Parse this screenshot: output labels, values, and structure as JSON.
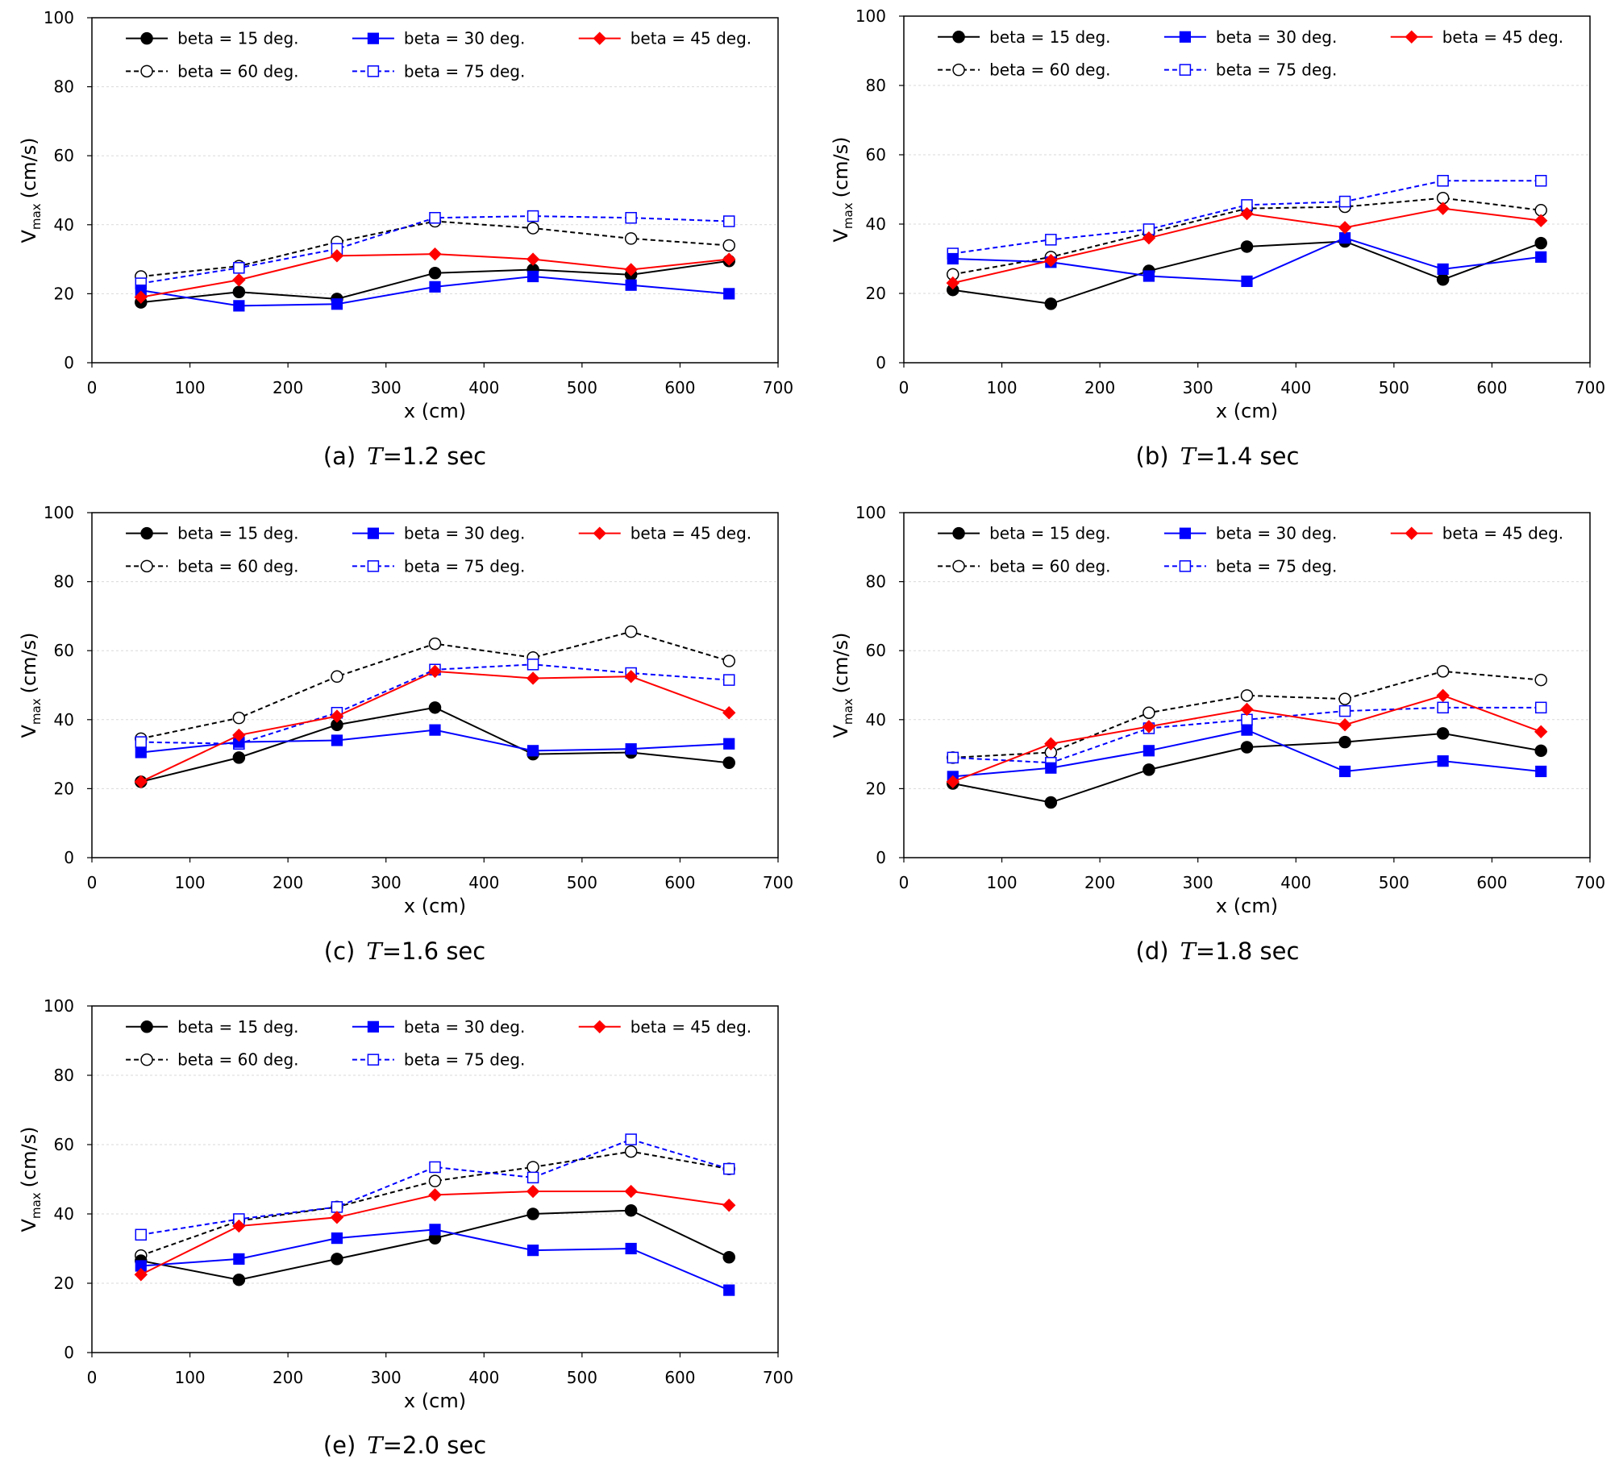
{
  "styles": {
    "black": "#000000",
    "blue": "#0000ff",
    "red": "#ff0000",
    "grid": "#d9d9d9"
  },
  "legend": [
    {
      "label": "beta = 15 deg.",
      "color": "#000000",
      "dash": false,
      "marker": "circle-filled"
    },
    {
      "label": "beta = 30 deg.",
      "color": "#0000ff",
      "dash": false,
      "marker": "square-filled"
    },
    {
      "label": "beta = 45 deg.",
      "color": "#ff0000",
      "dash": false,
      "marker": "diamond-filled"
    },
    {
      "label": "beta = 60 deg.",
      "color": "#000000",
      "dash": true,
      "marker": "circle-open"
    },
    {
      "label": "beta = 75 deg.",
      "color": "#0000ff",
      "dash": true,
      "marker": "square-open"
    }
  ],
  "chart_data": [
    {
      "type": "line",
      "id": "a",
      "caption_prefix": "(a)",
      "caption_var": "T",
      "caption_rest": "=1.2 sec",
      "xlabel": "x (cm)",
      "ylabel_main": "V",
      "ylabel_sub": "max",
      "ylabel_unit": "(cm/s)",
      "xlim": [
        0,
        700
      ],
      "ylim": [
        0,
        100
      ],
      "xticks": [
        0,
        100,
        200,
        300,
        400,
        500,
        600,
        700
      ],
      "yticks": [
        0,
        20,
        40,
        60,
        80,
        100
      ],
      "x": [
        50,
        150,
        250,
        350,
        450,
        550,
        650
      ],
      "series": [
        {
          "name": "beta = 15 deg.",
          "values": [
            17.5,
            20.5,
            18.5,
            26,
            27,
            25.5,
            29.5
          ]
        },
        {
          "name": "beta = 30 deg.",
          "values": [
            21,
            16.5,
            17,
            22,
            25,
            22.5,
            20
          ]
        },
        {
          "name": "beta = 45 deg.",
          "values": [
            19,
            24,
            31,
            31.5,
            30,
            27,
            30
          ]
        },
        {
          "name": "beta = 60 deg.",
          "values": [
            25,
            28,
            35,
            41,
            39,
            36,
            34
          ]
        },
        {
          "name": "beta = 75 deg.",
          "values": [
            23,
            27.5,
            33,
            42,
            42.5,
            42,
            41
          ]
        }
      ]
    },
    {
      "type": "line",
      "id": "b",
      "caption_prefix": "(b)",
      "caption_var": "T",
      "caption_rest": "=1.4 sec",
      "xlabel": "x (cm)",
      "ylabel_main": "V",
      "ylabel_sub": "max",
      "ylabel_unit": "(cm/s)",
      "xlim": [
        0,
        700
      ],
      "ylim": [
        0,
        100
      ],
      "xticks": [
        0,
        100,
        200,
        300,
        400,
        500,
        600,
        700
      ],
      "yticks": [
        0,
        20,
        40,
        60,
        80,
        100
      ],
      "x": [
        50,
        150,
        250,
        350,
        450,
        550,
        650
      ],
      "series": [
        {
          "name": "beta = 15 deg.",
          "values": [
            21,
            17,
            26.5,
            33.5,
            35,
            24,
            34.5
          ]
        },
        {
          "name": "beta = 30 deg.",
          "values": [
            30,
            29,
            25,
            23.5,
            36,
            27,
            30.5
          ]
        },
        {
          "name": "beta = 45 deg.",
          "values": [
            23,
            29.5,
            36,
            43,
            39,
            44.5,
            41
          ]
        },
        {
          "name": "beta = 60 deg.",
          "values": [
            25.5,
            30.5,
            37.5,
            44.5,
            45,
            47.5,
            44
          ]
        },
        {
          "name": "beta = 75 deg.",
          "values": [
            31.5,
            35.5,
            38.5,
            45.5,
            46.5,
            52.5,
            52.5
          ]
        }
      ]
    },
    {
      "type": "line",
      "id": "c",
      "caption_prefix": "(c)",
      "caption_var": "T",
      "caption_rest": "=1.6 sec",
      "xlabel": "x (cm)",
      "ylabel_main": "V",
      "ylabel_sub": "max",
      "ylabel_unit": "(cm/s)",
      "xlim": [
        0,
        700
      ],
      "ylim": [
        0,
        100
      ],
      "xticks": [
        0,
        100,
        200,
        300,
        400,
        500,
        600,
        700
      ],
      "yticks": [
        0,
        20,
        40,
        60,
        80,
        100
      ],
      "x": [
        50,
        150,
        250,
        350,
        450,
        550,
        650
      ],
      "series": [
        {
          "name": "beta = 15 deg.",
          "values": [
            22,
            29,
            38.5,
            43.5,
            30,
            30.5,
            27.5
          ]
        },
        {
          "name": "beta = 30 deg.",
          "values": [
            30.5,
            33.5,
            34,
            37,
            31,
            31.5,
            33
          ]
        },
        {
          "name": "beta = 45 deg.",
          "values": [
            22,
            35.5,
            41,
            54,
            52,
            52.5,
            42
          ]
        },
        {
          "name": "beta = 60 deg.",
          "values": [
            34.5,
            40.5,
            52.5,
            62,
            58,
            65.5,
            57
          ]
        },
        {
          "name": "beta = 75 deg.",
          "values": [
            33.5,
            33,
            42,
            54.5,
            56,
            53.5,
            51.5
          ]
        }
      ]
    },
    {
      "type": "line",
      "id": "d",
      "caption_prefix": "(d)",
      "caption_var": "T",
      "caption_rest": "=1.8 sec",
      "xlabel": "x (cm)",
      "ylabel_main": "V",
      "ylabel_sub": "max",
      "ylabel_unit": "(cm/s)",
      "xlim": [
        0,
        700
      ],
      "ylim": [
        0,
        100
      ],
      "xticks": [
        0,
        100,
        200,
        300,
        400,
        500,
        600,
        700
      ],
      "yticks": [
        0,
        20,
        40,
        60,
        80,
        100
      ],
      "x": [
        50,
        150,
        250,
        350,
        450,
        550,
        650
      ],
      "series": [
        {
          "name": "beta = 15 deg.",
          "values": [
            21.5,
            16,
            25.5,
            32,
            33.5,
            36,
            31
          ]
        },
        {
          "name": "beta = 30 deg.",
          "values": [
            23.5,
            26,
            31,
            37,
            25,
            28,
            25
          ]
        },
        {
          "name": "beta = 45 deg.",
          "values": [
            22,
            33,
            38,
            43,
            38.5,
            47,
            36.5
          ]
        },
        {
          "name": "beta = 60 deg.",
          "values": [
            29,
            30.5,
            42,
            47,
            46,
            54,
            51.5
          ]
        },
        {
          "name": "beta = 75 deg.",
          "values": [
            29,
            27.5,
            37.5,
            40,
            42.5,
            43.5,
            43.5
          ]
        }
      ]
    },
    {
      "type": "line",
      "id": "e",
      "caption_prefix": "(e)",
      "caption_var": "T",
      "caption_rest": "=2.0 sec",
      "xlabel": "x (cm)",
      "ylabel_main": "V",
      "ylabel_sub": "max",
      "ylabel_unit": "(cm/s)",
      "xlim": [
        0,
        700
      ],
      "ylim": [
        0,
        100
      ],
      "xticks": [
        0,
        100,
        200,
        300,
        400,
        500,
        600,
        700
      ],
      "yticks": [
        0,
        20,
        40,
        60,
        80,
        100
      ],
      "x": [
        50,
        150,
        250,
        350,
        450,
        550,
        650
      ],
      "series": [
        {
          "name": "beta = 15 deg.",
          "values": [
            26.5,
            21,
            27,
            33,
            40,
            41,
            27.5
          ]
        },
        {
          "name": "beta = 30 deg.",
          "values": [
            25,
            27,
            33,
            35.5,
            29.5,
            30,
            18
          ]
        },
        {
          "name": "beta = 45 deg.",
          "values": [
            22.5,
            36.5,
            39,
            45.5,
            46.5,
            46.5,
            42.5
          ]
        },
        {
          "name": "beta = 60 deg.",
          "values": [
            28,
            38,
            42,
            49.5,
            53.5,
            58,
            53
          ]
        },
        {
          "name": "beta = 75 deg.",
          "values": [
            34,
            38.5,
            42,
            53.5,
            50.5,
            61.5,
            53
          ]
        }
      ]
    }
  ]
}
